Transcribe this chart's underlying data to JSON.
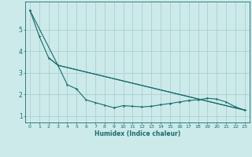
{
  "xlabel": "Humidex (Indice chaleur)",
  "ylabel": "",
  "bg_color": "#cceaea",
  "grid_color": "#aacfcf",
  "line_color": "#1a6b6b",
  "xlim": [
    -0.5,
    23.5
  ],
  "ylim": [
    0.7,
    6.3
  ],
  "yticks": [
    1,
    2,
    3,
    4,
    5
  ],
  "xticks": [
    0,
    1,
    2,
    3,
    4,
    5,
    6,
    7,
    8,
    9,
    10,
    11,
    12,
    13,
    14,
    15,
    16,
    17,
    18,
    19,
    20,
    21,
    22,
    23
  ],
  "line1_x": [
    0,
    1,
    2,
    3,
    4,
    5,
    6,
    7,
    8,
    9,
    10,
    11,
    12,
    13,
    14,
    15,
    16,
    17,
    18,
    19,
    20,
    21,
    22,
    23
  ],
  "line1_y": [
    5.9,
    4.7,
    3.7,
    3.35,
    2.45,
    2.25,
    1.75,
    1.62,
    1.5,
    1.38,
    1.48,
    1.45,
    1.42,
    1.45,
    1.52,
    1.58,
    1.65,
    1.72,
    1.75,
    1.82,
    1.78,
    1.65,
    1.42,
    1.27
  ],
  "line2_x": [
    0,
    3,
    23
  ],
  "line2_y": [
    5.9,
    3.35,
    1.27
  ],
  "line3_x": [
    2,
    3,
    23
  ],
  "line3_y": [
    3.7,
    3.35,
    1.27
  ]
}
